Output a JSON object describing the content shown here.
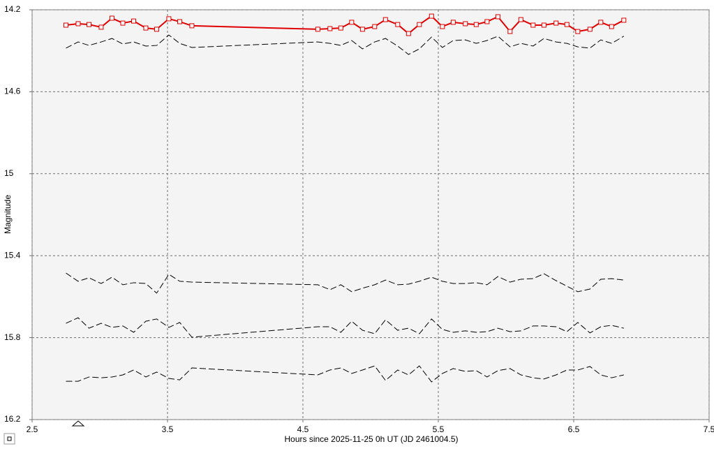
{
  "chart_data": {
    "type": "line",
    "x_label": "Hours since 2025-11-25 0h UT (JD 2461004.5)",
    "y_label": "Magnitude",
    "xlim": [
      2.5,
      7.5
    ],
    "xticks": [
      2.5,
      3.5,
      4.5,
      5.5,
      6.5,
      7.5
    ],
    "ylim": [
      14.2,
      16.2
    ],
    "yticks": [
      14.2,
      14.6,
      15,
      15.4,
      15.8,
      16.2
    ],
    "y_inverted": true,
    "grid": true,
    "x": [
      2.75,
      2.84,
      2.92,
      3.01,
      3.09,
      3.17,
      3.25,
      3.34,
      3.42,
      3.51,
      3.59,
      3.68,
      4.61,
      4.7,
      4.78,
      4.86,
      4.94,
      5.03,
      5.11,
      5.2,
      5.28,
      5.36,
      5.45,
      5.53,
      5.61,
      5.7,
      5.78,
      5.86,
      5.94,
      6.03,
      6.11,
      6.2,
      6.28,
      6.37,
      6.45,
      6.53,
      6.62,
      6.7,
      6.78,
      6.87
    ],
    "series": [
      {
        "color": "#e00000",
        "line_style": "solid",
        "marker": "square",
        "values": [
          14.275,
          14.268,
          14.272,
          14.285,
          14.241,
          14.265,
          14.255,
          14.289,
          14.295,
          14.244,
          14.258,
          14.278,
          14.295,
          14.292,
          14.289,
          14.261,
          14.295,
          14.282,
          14.248,
          14.272,
          14.316,
          14.272,
          14.231,
          14.282,
          14.261,
          14.268,
          14.272,
          14.258,
          14.234,
          14.306,
          14.248,
          14.275,
          14.275,
          14.265,
          14.272,
          14.306,
          14.295,
          14.261,
          14.282,
          14.251
        ]
      },
      {
        "color": "#000000",
        "line_style": "dashed",
        "values": [
          14.387,
          14.357,
          14.374,
          14.357,
          14.34,
          14.367,
          14.357,
          14.377,
          14.374,
          14.323,
          14.364,
          14.384,
          14.357,
          14.364,
          14.374,
          14.35,
          14.391,
          14.357,
          14.34,
          14.377,
          14.418,
          14.391,
          14.333,
          14.384,
          14.35,
          14.347,
          14.364,
          14.35,
          14.329,
          14.381,
          14.364,
          14.377,
          14.34,
          14.357,
          14.364,
          14.381,
          14.387,
          14.347,
          14.364,
          14.329
        ]
      },
      {
        "color": "#000000",
        "line_style": "dashed",
        "values": [
          15.485,
          15.525,
          15.508,
          15.536,
          15.505,
          15.542,
          15.532,
          15.536,
          15.583,
          15.491,
          15.525,
          15.529,
          15.542,
          15.566,
          15.542,
          15.576,
          15.559,
          15.542,
          15.519,
          15.542,
          15.539,
          15.525,
          15.505,
          15.525,
          15.536,
          15.536,
          15.532,
          15.542,
          15.502,
          15.529,
          15.515,
          15.512,
          15.488,
          15.522,
          15.549,
          15.576,
          15.563,
          15.515,
          15.512,
          15.519
        ]
      },
      {
        "color": "#000000",
        "line_style": "dashed",
        "values": [
          15.73,
          15.703,
          15.754,
          15.73,
          15.75,
          15.743,
          15.774,
          15.72,
          15.709,
          15.75,
          15.726,
          15.798,
          15.747,
          15.747,
          15.774,
          15.72,
          15.764,
          15.781,
          15.713,
          15.764,
          15.754,
          15.781,
          15.709,
          15.76,
          15.774,
          15.767,
          15.774,
          15.771,
          15.754,
          15.771,
          15.767,
          15.743,
          15.743,
          15.747,
          15.771,
          15.726,
          15.777,
          15.747,
          15.74,
          15.754
        ]
      },
      {
        "color": "#000000",
        "line_style": "dashed",
        "values": [
          16.013,
          16.013,
          15.992,
          15.996,
          15.992,
          15.982,
          15.958,
          15.992,
          15.968,
          15.999,
          16.006,
          15.948,
          15.982,
          15.958,
          15.948,
          15.975,
          15.958,
          15.938,
          16.009,
          15.958,
          15.982,
          15.938,
          16.016,
          15.975,
          15.951,
          15.965,
          15.961,
          15.992,
          15.961,
          15.951,
          15.982,
          15.996,
          16.002,
          15.982,
          15.958,
          15.958,
          15.941,
          15.982,
          15.996,
          15.982
        ]
      }
    ]
  }
}
